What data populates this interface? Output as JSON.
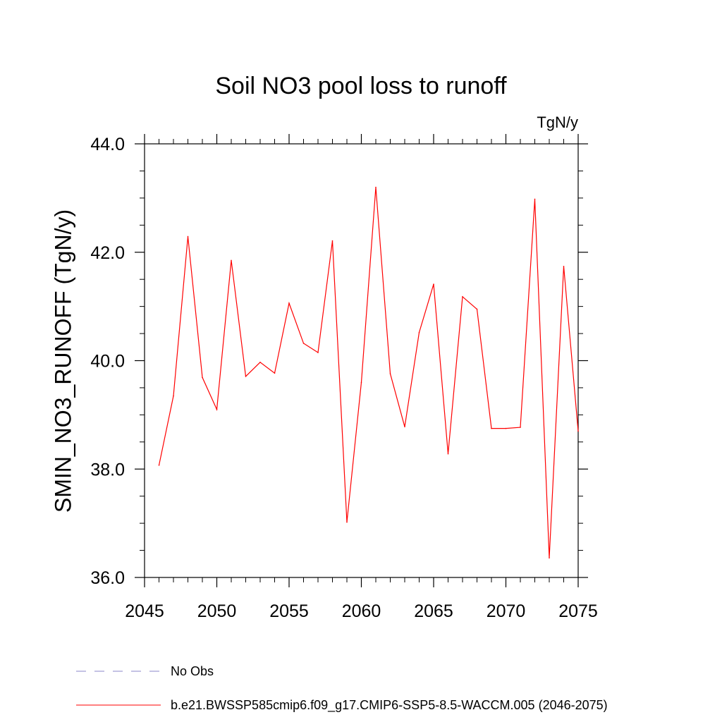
{
  "chart_data": {
    "type": "line",
    "title": "Soil NO3 pool loss to runoff",
    "units_label": "TgN/y",
    "ylabel": "SMIN_NO3_RUNOFF  (TgN/y)",
    "xlabel": "",
    "xlim": [
      2045,
      2075
    ],
    "ylim": [
      36.0,
      44.0
    ],
    "x_ticks": [
      2045,
      2050,
      2055,
      2060,
      2065,
      2070,
      2075
    ],
    "x_tick_labels": [
      "2045",
      "2050",
      "2055",
      "2060",
      "2065",
      "2070",
      "2075"
    ],
    "y_ticks": [
      36.0,
      38.0,
      40.0,
      42.0,
      44.0
    ],
    "y_tick_labels": [
      "36.0",
      "38.0",
      "40.0",
      "42.0",
      "44.0"
    ],
    "x_minor_step": 1,
    "y_minor_step": 0.5,
    "grid": false,
    "legend_position": "bottom",
    "series": [
      {
        "name": "b.e21.BWSSP585cmip6.f09_g17.CMIP6-SSP5-8.5-WACCM.005 (2046-2075)",
        "color": "#ff0000",
        "style": "solid",
        "x": [
          2046,
          2047,
          2048,
          2049,
          2050,
          2051,
          2052,
          2053,
          2054,
          2055,
          2056,
          2057,
          2058,
          2059,
          2060,
          2061,
          2062,
          2063,
          2064,
          2065,
          2066,
          2067,
          2068,
          2069,
          2070,
          2071,
          2072,
          2073,
          2074,
          2075
        ],
        "values": [
          38.07,
          39.35,
          42.29,
          39.69,
          39.1,
          41.85,
          39.71,
          39.97,
          39.77,
          41.06,
          40.32,
          40.15,
          42.21,
          37.02,
          39.6,
          43.2,
          39.76,
          38.78,
          40.52,
          41.41,
          38.28,
          41.18,
          40.95,
          38.75,
          38.75,
          38.77,
          42.98,
          36.36,
          41.74,
          38.7
        ]
      }
    ],
    "legend": [
      {
        "label": "No Obs",
        "color": "#8a86c8",
        "style": "dashed"
      },
      {
        "label": "b.e21.BWSSP585cmip6.f09_g17.CMIP6-SSP5-8.5-WACCM.005 (2046-2075)",
        "color": "#ff0000",
        "style": "solid"
      }
    ]
  }
}
